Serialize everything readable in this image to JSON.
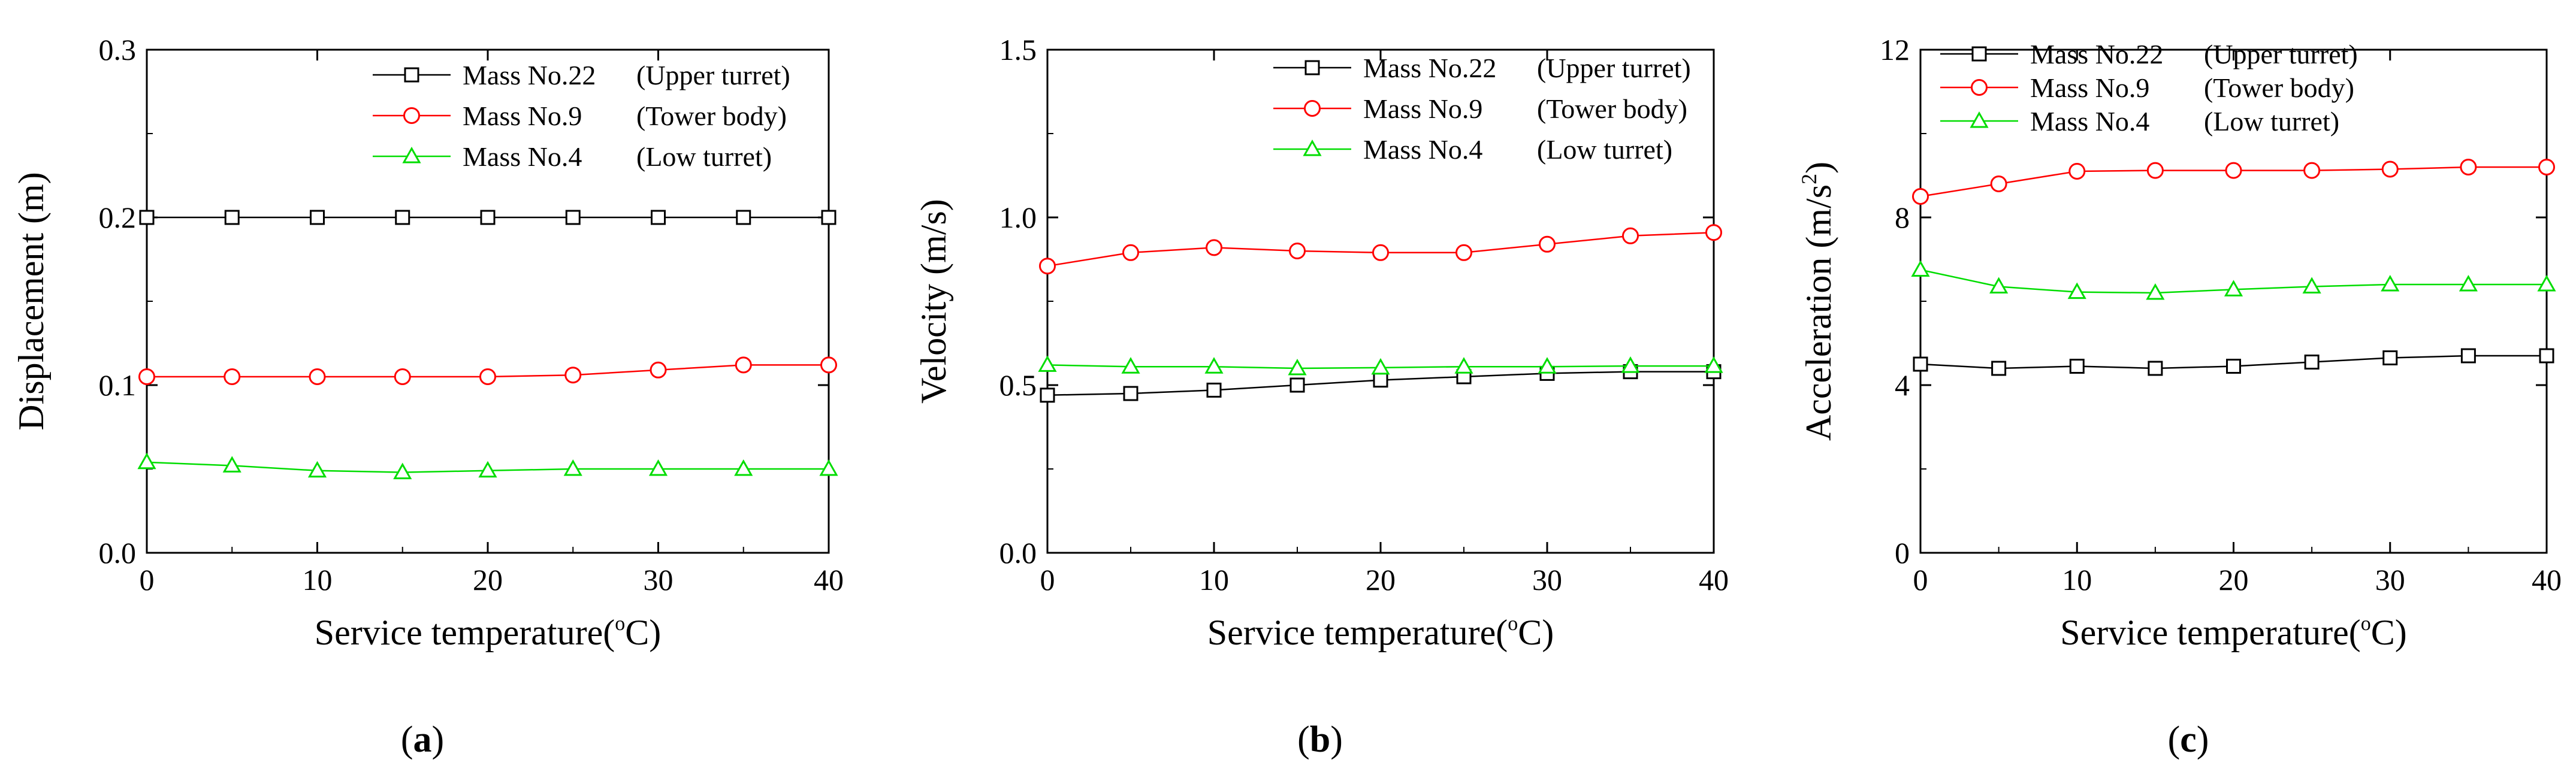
{
  "colors": {
    "upper": "#000000",
    "tower": "#ff0000",
    "low": "#00dd00",
    "axis": "#000000"
  },
  "chart_data": [
    {
      "type": "line",
      "panel_label": "a",
      "xlabel": "Service temperature(",
      "xlabel_unit": "C)",
      "xlabel_sup": "o",
      "ylabel": "Displacement (m)",
      "ylabel_sup": "",
      "ylabel_tail": "",
      "xlim": [
        0,
        40
      ],
      "ylim": [
        0,
        0.3
      ],
      "xticks": [
        0,
        10,
        20,
        30,
        40
      ],
      "yticks": [
        0.0,
        0.1,
        0.2,
        0.3
      ],
      "ytick_labels": [
        "0.0",
        "0.1",
        "0.2",
        "0.3"
      ],
      "x": [
        0,
        5,
        10,
        15,
        20,
        25,
        30,
        35,
        40
      ],
      "legend_position": "top-right",
      "series": [
        {
          "name": "Mass No.22",
          "note": "(Upper turret)",
          "marker": "square",
          "color": "#000000",
          "values": [
            0.2,
            0.2,
            0.2,
            0.2,
            0.2,
            0.2,
            0.2,
            0.2,
            0.2
          ]
        },
        {
          "name": "Mass No.9",
          "note": "(Tower body)",
          "marker": "circle",
          "color": "#ff0000",
          "values": [
            0.105,
            0.105,
            0.105,
            0.105,
            0.105,
            0.106,
            0.109,
            0.112,
            0.112
          ]
        },
        {
          "name": "Mass No.4",
          "note": "(Low turret)",
          "marker": "triangle",
          "color": "#00dd00",
          "values": [
            0.054,
            0.052,
            0.049,
            0.048,
            0.049,
            0.05,
            0.05,
            0.05,
            0.05
          ]
        }
      ]
    },
    {
      "type": "line",
      "panel_label": "b",
      "xlabel": "Service temperature(",
      "xlabel_unit": "C)",
      "xlabel_sup": "o",
      "ylabel": "Velocity (m/s)",
      "ylabel_sup": "",
      "ylabel_tail": "",
      "xlim": [
        0,
        40
      ],
      "ylim": [
        0,
        1.5
      ],
      "xticks": [
        0,
        10,
        20,
        30,
        40
      ],
      "yticks": [
        0.0,
        0.5,
        1.0,
        1.5
      ],
      "ytick_labels": [
        "0.0",
        "0.5",
        "1.0",
        "1.5"
      ],
      "x": [
        0,
        5,
        10,
        15,
        20,
        25,
        30,
        35,
        40
      ],
      "legend_position": "top-right",
      "series": [
        {
          "name": "Mass No.22",
          "note": "(Upper turret)",
          "marker": "square",
          "color": "#000000",
          "values": [
            0.47,
            0.475,
            0.485,
            0.5,
            0.515,
            0.525,
            0.535,
            0.54,
            0.54
          ]
        },
        {
          "name": "Mass No.9",
          "note": "(Tower body)",
          "marker": "circle",
          "color": "#ff0000",
          "values": [
            0.855,
            0.895,
            0.91,
            0.9,
            0.895,
            0.895,
            0.92,
            0.945,
            0.955
          ]
        },
        {
          "name": "Mass No.4",
          "note": "(Low turret)",
          "marker": "triangle",
          "color": "#00dd00",
          "values": [
            0.56,
            0.555,
            0.555,
            0.55,
            0.552,
            0.555,
            0.555,
            0.557,
            0.557
          ]
        }
      ]
    },
    {
      "type": "line",
      "panel_label": "c",
      "xlabel": "Service temperature(",
      "xlabel_unit": "C)",
      "xlabel_sup": "o",
      "ylabel": "Acceleration (m/s",
      "ylabel_sup": "2",
      "ylabel_tail": ")",
      "xlim": [
        0,
        40
      ],
      "ylim": [
        0,
        12
      ],
      "xticks": [
        0,
        10,
        20,
        30,
        40
      ],
      "yticks": [
        0,
        4,
        8,
        12
      ],
      "ytick_labels": [
        "0",
        "4",
        "8",
        "12"
      ],
      "x": [
        0,
        5,
        10,
        15,
        20,
        25,
        30,
        35,
        40
      ],
      "legend_position": "top-left",
      "series": [
        {
          "name": "Mass No.22",
          "note": "(Upper turret)",
          "marker": "square",
          "color": "#000000",
          "values": [
            4.5,
            4.4,
            4.45,
            4.4,
            4.45,
            4.55,
            4.65,
            4.7,
            4.7
          ]
        },
        {
          "name": "Mass No.9",
          "note": "(Tower body)",
          "marker": "circle",
          "color": "#ff0000",
          "values": [
            8.5,
            8.8,
            9.1,
            9.12,
            9.12,
            9.12,
            9.15,
            9.2,
            9.2
          ]
        },
        {
          "name": "Mass No.4",
          "note": "(Low turret)",
          "marker": "triangle",
          "color": "#00dd00",
          "values": [
            6.75,
            6.35,
            6.22,
            6.2,
            6.28,
            6.35,
            6.4,
            6.4,
            6.4
          ]
        }
      ]
    }
  ]
}
